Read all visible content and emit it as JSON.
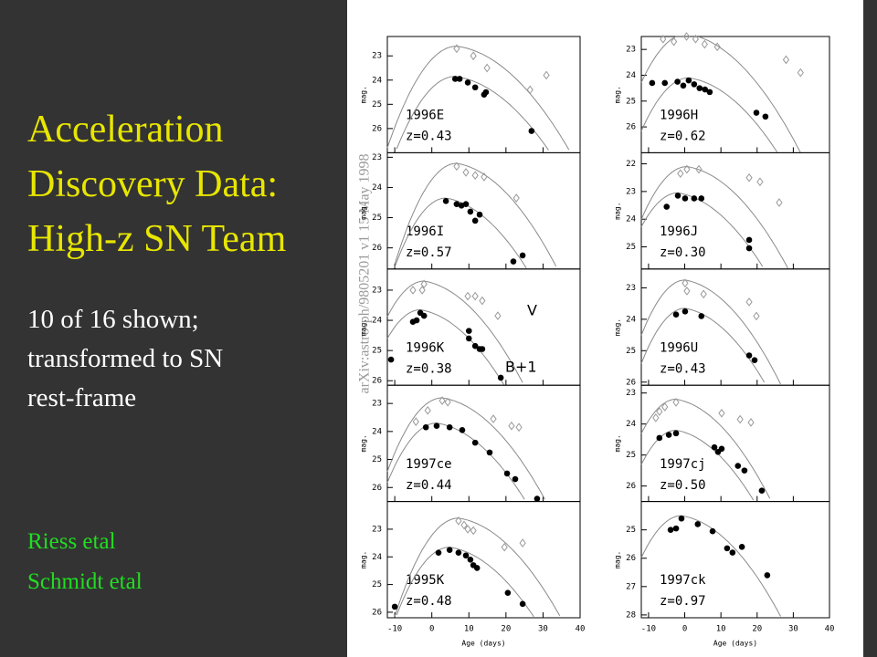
{
  "slide": {
    "title_lines": [
      "Acceleration",
      "Discovery Data:",
      "High-z SN Team"
    ],
    "subtitle_lines": [
      "10 of 16 shown;",
      "transformed to SN",
      "rest-frame"
    ],
    "credits": [
      "Riess etal",
      "Schmidt etal"
    ]
  },
  "figure": {
    "stamp": "arXiv:astro-ph/9805201 v1   15 May 1998",
    "x_label": "Age (days)",
    "y_label": "mag.",
    "xlim": [
      -12,
      40
    ],
    "xticks": [
      -10,
      0,
      10,
      20,
      30,
      40
    ],
    "band_labels": [
      "V",
      "B+1"
    ],
    "panels": [
      {
        "name": "1996E",
        "redshift": "z=0.43",
        "ylim": [
          22.2,
          27.0
        ],
        "yticks": [
          23,
          24,
          25,
          26
        ],
        "v": {
          "x": [
            6.7,
            11.2,
            14.9,
            26.5,
            30.9
          ],
          "y": [
            22.7,
            23.0,
            23.5,
            24.4,
            23.8
          ]
        },
        "b": {
          "x": [
            6.3,
            7.5,
            9.7,
            11.7,
            14.1,
            14.6,
            26.9
          ],
          "y": [
            23.95,
            23.95,
            24.1,
            24.3,
            24.6,
            24.5,
            26.1
          ]
        }
      },
      {
        "name": "1996H",
        "redshift": "z=0.62",
        "ylim": [
          22.5,
          27.0
        ],
        "yticks": [
          23,
          24,
          25,
          26
        ],
        "v": {
          "x": [
            -6,
            -3,
            0.5,
            3,
            5.5,
            9,
            28,
            32
          ],
          "y": [
            22.6,
            22.7,
            22.5,
            22.6,
            22.8,
            22.9,
            23.4,
            23.9
          ]
        },
        "b": {
          "x": [
            -9,
            -5.5,
            -2,
            -0.4,
            1.1,
            2.6,
            4.1,
            5.6,
            6.9,
            19.8,
            22.3
          ],
          "y": [
            24.3,
            24.3,
            24.25,
            24.4,
            24.2,
            24.35,
            24.5,
            24.55,
            24.65,
            25.45,
            25.6
          ]
        }
      },
      {
        "name": "1996I",
        "redshift": "z=0.57",
        "ylim": [
          22.85,
          26.7
        ],
        "yticks": [
          23,
          24,
          25,
          26
        ],
        "v": {
          "x": [
            6.7,
            9.2,
            11.7,
            14.1,
            22.8
          ],
          "y": [
            23.3,
            23.5,
            23.6,
            23.65,
            24.35
          ]
        },
        "b": {
          "x": [
            3.8,
            6.7,
            8,
            9.2,
            10.4,
            11.7,
            12.9,
            22,
            24.5
          ],
          "y": [
            24.45,
            24.55,
            24.6,
            24.55,
            24.8,
            25.1,
            24.9,
            26.45,
            26.25
          ]
        }
      },
      {
        "name": "1996J",
        "redshift": "z=0.30",
        "ylim": [
          21.6,
          25.8
        ],
        "yticks": [
          22,
          23,
          24,
          25
        ],
        "v": {
          "x": [
            -1.2,
            0.6,
            3.9,
            17.8,
            20.8,
            26.1
          ],
          "y": [
            22.35,
            22.2,
            22.2,
            22.5,
            22.65,
            23.4
          ]
        },
        "b": {
          "x": [
            -5,
            -1.9,
            0.1,
            2.6,
            4.6,
            17.8,
            17.8
          ],
          "y": [
            23.55,
            23.15,
            23.25,
            23.25,
            23.25,
            24.75,
            25.05
          ]
        }
      },
      {
        "name": "1996K",
        "redshift": "z=0.38",
        "ylim": [
          22.3,
          26.15
        ],
        "yticks": [
          23,
          24,
          25,
          26
        ],
        "v": {
          "x": [
            -5.1,
            -2.6,
            -2.1,
            9.7,
            11.7,
            13.6,
            17.8
          ],
          "y": [
            23.0,
            23.0,
            22.8,
            23.2,
            23.2,
            23.35,
            23.85
          ]
        },
        "b": {
          "x": [
            -11,
            -5.1,
            -4.1,
            -3.1,
            -2.1,
            10,
            10,
            11.7,
            12.9,
            13.6,
            18.6
          ],
          "y": [
            25.3,
            24.05,
            24.0,
            23.75,
            23.85,
            24.35,
            24.6,
            24.85,
            24.95,
            24.95,
            25.9
          ]
        }
      },
      {
        "name": "1996U",
        "redshift": "z=0.43",
        "ylim": [
          22.4,
          26.1
        ],
        "yticks": [
          23,
          24,
          25,
          26
        ],
        "v": {
          "x": [
            0.1,
            0.6,
            5.2,
            17.8,
            19.8
          ],
          "y": [
            22.85,
            23.1,
            23.2,
            23.45,
            23.9
          ]
        },
        "b": {
          "x": [
            -2.4,
            0.1,
            4.6,
            17.8,
            19.3
          ],
          "y": [
            23.85,
            23.75,
            23.9,
            25.15,
            25.3
          ]
        }
      },
      {
        "name": "1997ce",
        "redshift": "z=0.44",
        "ylim": [
          22.35,
          26.5
        ],
        "yticks": [
          23,
          24,
          25,
          26
        ],
        "v": {
          "x": [
            -4.3,
            -1.1,
            2.8,
            4.3,
            16.6,
            21.5,
            23.5
          ],
          "y": [
            23.65,
            23.25,
            22.9,
            22.95,
            23.55,
            23.8,
            23.85
          ]
        },
        "b": {
          "x": [
            -1.6,
            1.3,
            4.8,
            8.2,
            11.7,
            15.6,
            20.3,
            22.5,
            28.4
          ],
          "y": [
            23.85,
            23.8,
            23.85,
            23.95,
            24.4,
            24.75,
            25.5,
            25.7,
            26.4
          ]
        }
      },
      {
        "name": "1997cj",
        "redshift": "z=0.50",
        "ylim": [
          22.75,
          26.5
        ],
        "yticks": [
          23,
          24,
          25,
          26
        ],
        "v": {
          "x": [
            -8,
            -7,
            -5.5,
            -2.4,
            10.2,
            15.3,
            18.3
          ],
          "y": [
            23.8,
            23.6,
            23.45,
            23.3,
            23.65,
            23.85,
            23.95
          ]
        },
        "b": {
          "x": [
            -7,
            -4.4,
            -2.4,
            8.2,
            9.2,
            10.2,
            14.7,
            16.5,
            21.3
          ],
          "y": [
            24.45,
            24.35,
            24.3,
            24.75,
            24.9,
            24.8,
            25.35,
            25.5,
            26.15
          ]
        }
      },
      {
        "name": "1995K",
        "redshift": "z=0.48",
        "ylim": [
          22.0,
          26.2
        ],
        "yticks": [
          23,
          24,
          25,
          26
        ],
        "v": {
          "x": [
            7.2,
            8.7,
            9.7,
            11.2,
            19.6,
            24.5
          ],
          "y": [
            22.7,
            22.85,
            23.0,
            23.05,
            23.65,
            23.5
          ]
        },
        "b": {
          "x": [
            -10,
            1.8,
            4.8,
            7.2,
            9.2,
            10.4,
            11.2,
            12.2,
            20.5,
            24.5
          ],
          "y": [
            25.8,
            23.85,
            23.75,
            23.85,
            23.95,
            24.1,
            24.3,
            24.4,
            25.3,
            25.7
          ]
        }
      },
      {
        "name": "1997ck",
        "redshift": "z=0.97",
        "ylim": [
          24.0,
          28.1
        ],
        "yticks": [
          25,
          26,
          27,
          28
        ],
        "v": {
          "x": [],
          "y": []
        },
        "b": {
          "x": [
            -3.9,
            -2.4,
            -0.9,
            3.6,
            7.7,
            11.7,
            13.2,
            15.8,
            22.8
          ],
          "y": [
            25.0,
            24.95,
            24.6,
            24.8,
            25.05,
            25.65,
            25.8,
            25.6,
            26.6
          ]
        }
      }
    ]
  }
}
